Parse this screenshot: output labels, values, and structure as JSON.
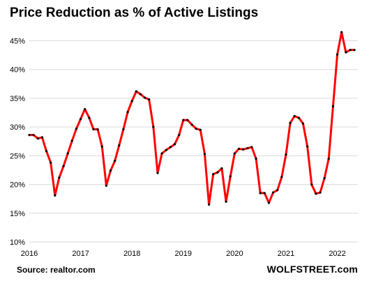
{
  "header": {
    "title": "Price Reduction as % of Active Listings"
  },
  "footer": {
    "source": "Source: realtor.com",
    "brand": "WOLFSTREET.com"
  },
  "chart_data": {
    "type": "line",
    "title": "Price Reduction as % of Active Listings",
    "xlabel": "",
    "ylabel": "",
    "xlim": [
      2016,
      2022.4
    ],
    "ylim": [
      10,
      47
    ],
    "y_ticks": [
      10,
      15,
      20,
      25,
      30,
      35,
      40,
      45
    ],
    "y_tick_labels": [
      "10%",
      "15%",
      "20%",
      "25%",
      "30%",
      "35%",
      "40%",
      "45%"
    ],
    "x_ticks": [
      2016,
      2017,
      2018,
      2019,
      2020,
      2021,
      2022
    ],
    "x_tick_labels": [
      "2016",
      "2017",
      "2018",
      "2019",
      "2020",
      "2021",
      "2022"
    ],
    "grid": "horizontal",
    "line_color": "#ff0000",
    "marker_color": "#000000",
    "series": [
      {
        "x": [
          2016.0,
          2016.083,
          2016.167,
          2016.25,
          2016.333,
          2016.417,
          2016.5,
          2016.583,
          2016.667,
          2016.75,
          2016.833,
          2016.917,
          2017.0,
          2017.083,
          2017.167,
          2017.25,
          2017.333,
          2017.417,
          2017.5,
          2017.583,
          2017.667,
          2017.75,
          2017.833,
          2017.917,
          2018.0,
          2018.083,
          2018.167,
          2018.25,
          2018.333,
          2018.417,
          2018.5,
          2018.583,
          2018.667,
          2018.75,
          2018.833,
          2018.917,
          2019.0,
          2019.083,
          2019.167,
          2019.25,
          2019.333,
          2019.417,
          2019.5,
          2019.583,
          2019.667,
          2019.75,
          2019.833,
          2019.917,
          2020.0,
          2020.083,
          2020.167,
          2020.25,
          2020.333,
          2020.417,
          2020.5,
          2020.583,
          2020.667,
          2020.75,
          2020.833,
          2020.917,
          2021.0,
          2021.083,
          2021.167,
          2021.25,
          2021.333,
          2021.417,
          2021.5,
          2021.583,
          2021.667,
          2021.75,
          2021.833,
          2021.917,
          2022.0,
          2022.083,
          2022.167,
          2022.25,
          2022.333
        ],
        "y": [
          28.6,
          28.6,
          28.0,
          28.2,
          25.8,
          23.8,
          18.1,
          21.2,
          23.2,
          25.4,
          27.6,
          29.7,
          31.4,
          33.1,
          31.6,
          29.6,
          29.6,
          26.6,
          19.8,
          22.4,
          24.1,
          26.8,
          29.6,
          32.6,
          34.5,
          36.2,
          35.7,
          35.1,
          34.8,
          30.0,
          22.0,
          25.4,
          26.0,
          26.5,
          27.0,
          28.6,
          31.2,
          31.2,
          30.4,
          29.7,
          29.5,
          25.3,
          16.5,
          21.8,
          22.1,
          22.8,
          17.0,
          21.4,
          25.4,
          26.2,
          26.1,
          26.3,
          26.5,
          24.5,
          18.5,
          18.5,
          16.8,
          18.6,
          19.0,
          21.3,
          25.2,
          30.7,
          31.9,
          31.6,
          30.6,
          26.6,
          20.0,
          18.4,
          18.6,
          21.1,
          24.5,
          33.6,
          42.6,
          46.5,
          43.0,
          43.4,
          43.4
        ]
      }
    ]
  }
}
